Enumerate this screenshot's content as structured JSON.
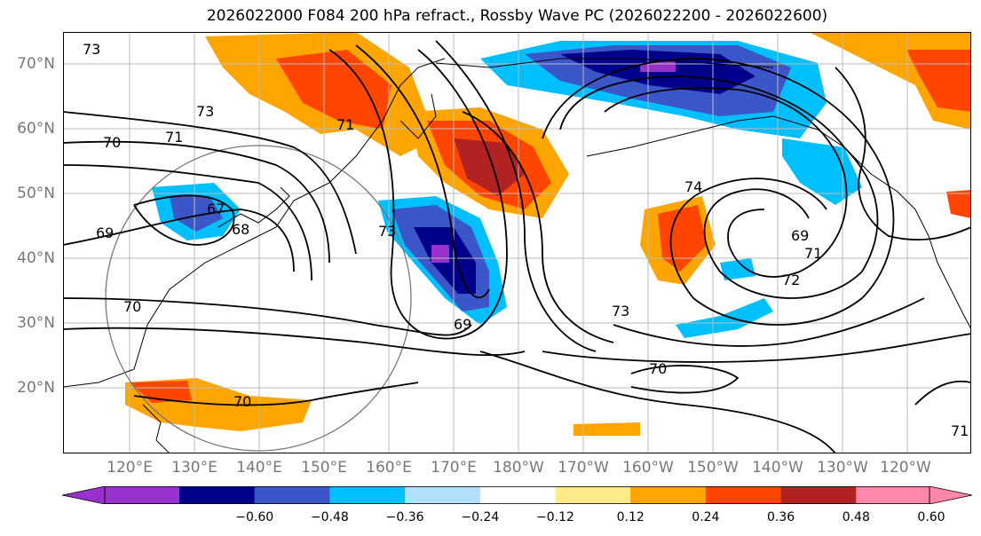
{
  "title": "2026022000 F084 200 hPa refract., Rossby Wave PC (2026022200 - 2026022600)",
  "lat_labels": [
    "70°N",
    "60°N",
    "50°N",
    "40°N",
    "30°N",
    "20°N"
  ],
  "lon_labels": [
    "120°E",
    "130°E",
    "140°E",
    "150°E",
    "160°E",
    "170°E",
    "180°W",
    "170°W",
    "160°W",
    "150°W",
    "140°W",
    "130°W",
    "120°W"
  ],
  "colorbar": {
    "ticks": [
      "−0.60",
      "−0.48",
      "−0.36",
      "−0.24",
      "−0.12",
      "0.12",
      "0.24",
      "0.36",
      "0.48",
      "0.60"
    ],
    "colors": [
      "#9932cc",
      "#00008b",
      "#3a56c9",
      "#00bfff",
      "#b0e0fa",
      "#ffffff",
      "#ffeb8a",
      "#ffa500",
      "#ff4500",
      "#b22222",
      "#ff88aa"
    ]
  },
  "contour_labels": [
    "73",
    "73",
    "71",
    "70",
    "71",
    "67",
    "69",
    "68",
    "73",
    "70",
    "69",
    "70",
    "74",
    "69",
    "71",
    "72",
    "73",
    "70",
    "71"
  ]
}
